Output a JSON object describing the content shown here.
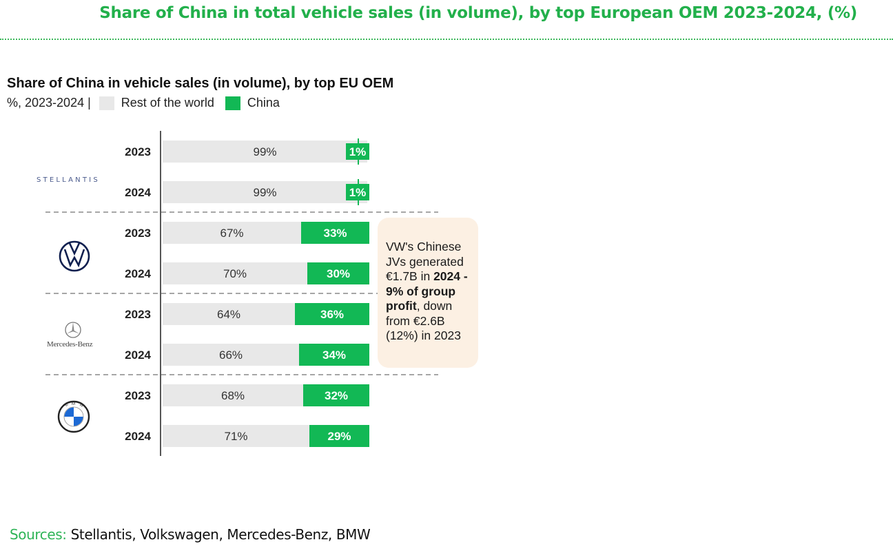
{
  "page": {
    "main_title": "Share of China in total vehicle sales (in volume), by top European OEM 2023-2024, (%)",
    "sources_label": "Sources:",
    "sources_text": " Stellantis, Volkswagen, Mercedes-Benz, BMW"
  },
  "colors": {
    "china": "#12b855",
    "rest_of_world": "#e8e8e8",
    "title_green": "#22b04b",
    "callout_bg": "#fcf0e3"
  },
  "chart_data": {
    "type": "bar",
    "orientation": "horizontal",
    "stacked": true,
    "title": "Share of China in vehicle sales (in volume), by top EU OEM",
    "subtitle": "%, 2023-2024 |",
    "legend": [
      "Rest of the world",
      "China"
    ],
    "legend_placement": "top-left",
    "unit": "%",
    "groups": [
      {
        "oem": "Stellantis",
        "logo_text": "STELLANTIS",
        "rows": [
          {
            "year": "2023",
            "rest_of_world": 99,
            "china": 1
          },
          {
            "year": "2024",
            "rest_of_world": 99,
            "china": 1
          }
        ]
      },
      {
        "oem": "Volkswagen",
        "logo_text": "",
        "rows": [
          {
            "year": "2023",
            "rest_of_world": 67,
            "china": 33
          },
          {
            "year": "2024",
            "rest_of_world": 70,
            "china": 30
          }
        ]
      },
      {
        "oem": "Mercedes-Benz",
        "logo_text": "Mercedes-Benz",
        "rows": [
          {
            "year": "2023",
            "rest_of_world": 64,
            "china": 36
          },
          {
            "year": "2024",
            "rest_of_world": 66,
            "china": 34
          }
        ]
      },
      {
        "oem": "BMW",
        "logo_text": "",
        "rows": [
          {
            "year": "2023",
            "rest_of_world": 68,
            "china": 32
          },
          {
            "year": "2024",
            "rest_of_world": 71,
            "china": 29
          }
        ]
      }
    ],
    "annotation": {
      "attached_to": "Volkswagen",
      "parts": [
        {
          "text": "VW's Chinese JVs generated €1.7B in ",
          "bold": false
        },
        {
          "text": "2024 - 9% of group profit",
          "bold": true
        },
        {
          "text": ", down from €2.6B (12%) in 2023",
          "bold": false
        }
      ]
    }
  }
}
